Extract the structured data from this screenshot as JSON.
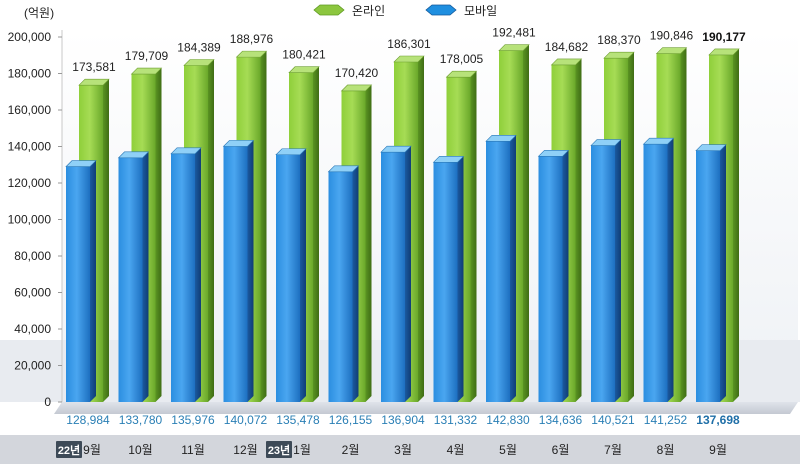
{
  "chart_data": {
    "type": "bar",
    "unit_label": "(억원)",
    "categories": [
      "9월",
      "10월",
      "11월",
      "12월",
      "1월",
      "2월",
      "3월",
      "4월",
      "5월",
      "6월",
      "7월",
      "8월",
      "9월"
    ],
    "year_badges": [
      {
        "index": 0,
        "label": "22년"
      },
      {
        "index": 4,
        "label": "23년"
      }
    ],
    "series": [
      {
        "name": "온라인",
        "values": [
          173581,
          179709,
          184389,
          188976,
          180421,
          170420,
          186301,
          178005,
          192481,
          184682,
          188370,
          190846,
          190177
        ],
        "color": "#8cc63f"
      },
      {
        "name": "모바일",
        "values": [
          128984,
          133780,
          135976,
          140072,
          135478,
          126155,
          136904,
          131332,
          142830,
          134636,
          140521,
          141252,
          137698
        ],
        "color": "#1f8fe0"
      }
    ],
    "value_labels_online": [
      "173,581",
      "179,709",
      "184,389",
      "188,976",
      "180,421",
      "170,420",
      "186,301",
      "178,005",
      "192,481",
      "184,682",
      "188,370",
      "190,846",
      "190,177"
    ],
    "value_labels_mobile": [
      "128,984",
      "133,780",
      "135,976",
      "140,072",
      "135,478",
      "126,155",
      "136,904",
      "131,332",
      "142,830",
      "134,636",
      "140,521",
      "141,252",
      "137,698"
    ],
    "highlight_index": 12,
    "ylim": [
      0,
      200000
    ],
    "yticks": [
      0,
      20000,
      40000,
      60000,
      80000,
      100000,
      120000,
      140000,
      160000,
      180000,
      200000
    ],
    "ytick_labels": [
      "0",
      "20,000",
      "40,000",
      "60,000",
      "80,000",
      "100,000",
      "120,000",
      "140,000",
      "160,000",
      "180,000",
      "200,000"
    ],
    "legend_position": "top-center",
    "grid": false
  }
}
